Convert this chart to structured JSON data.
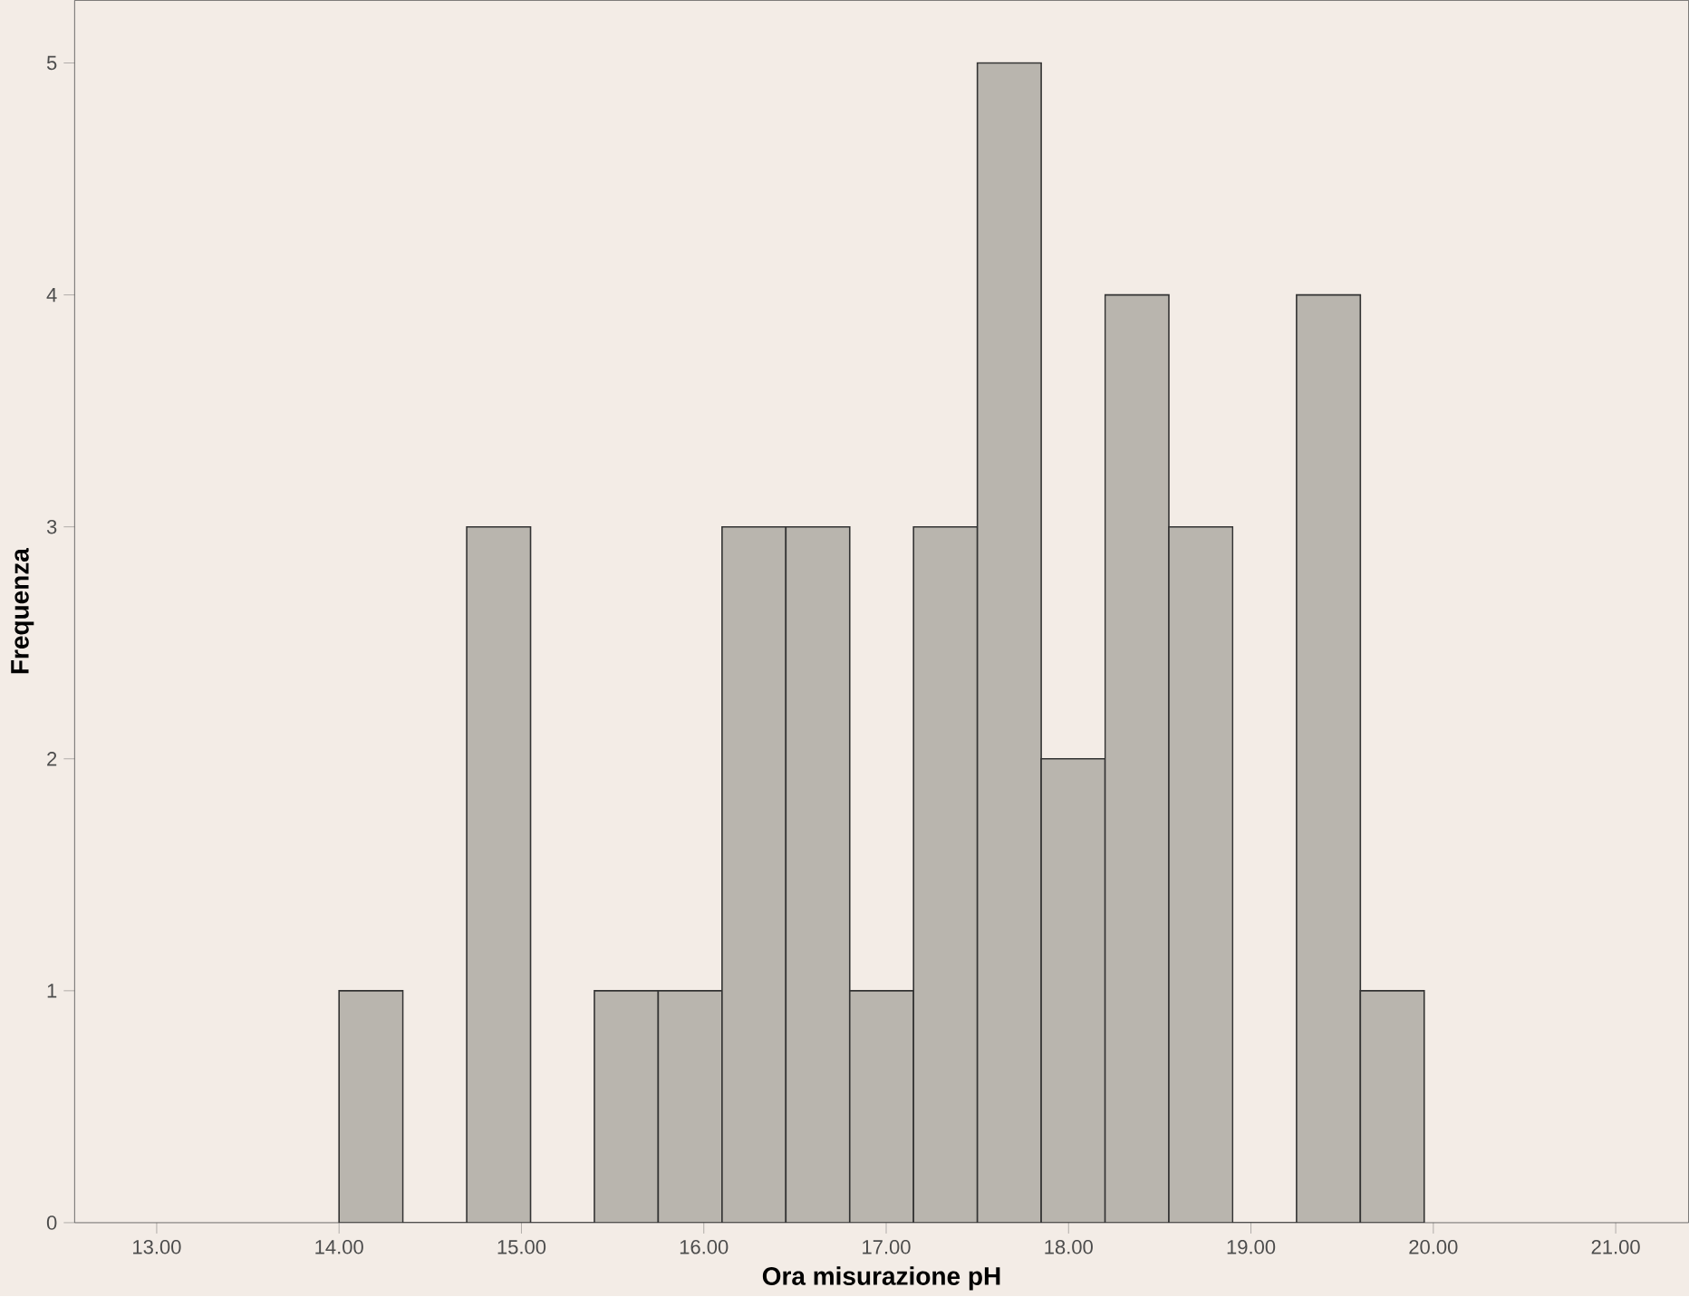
{
  "chart_data": {
    "type": "histogram",
    "xlabel": "Ora misurazione pH",
    "ylabel": "Frequenza",
    "bins": [
      14.0,
      14.35,
      14.7,
      15.05,
      15.4,
      15.75,
      16.1,
      16.45,
      16.8,
      17.15,
      17.5,
      17.85,
      18.2,
      18.55,
      18.9,
      19.25,
      19.6,
      19.95
    ],
    "values": [
      1,
      0,
      3,
      0,
      1,
      1,
      3,
      3,
      1,
      3,
      5,
      2,
      4,
      3,
      0,
      4,
      1
    ],
    "color": "#b9b5ae",
    "xlim": [
      12.55,
      21.4
    ],
    "ylim": [
      0,
      5.27
    ],
    "xticks": [
      {
        "value": 13,
        "label": "13.00"
      },
      {
        "value": 14,
        "label": "14.00"
      },
      {
        "value": 15,
        "label": "15.00"
      },
      {
        "value": 16,
        "label": "16.00"
      },
      {
        "value": 17,
        "label": "17.00"
      },
      {
        "value": 18,
        "label": "18.00"
      },
      {
        "value": 19,
        "label": "19.00"
      },
      {
        "value": 20,
        "label": "20.00"
      },
      {
        "value": 21,
        "label": "21.00"
      }
    ],
    "yticks": [
      0,
      1,
      2,
      3,
      4,
      5
    ]
  }
}
